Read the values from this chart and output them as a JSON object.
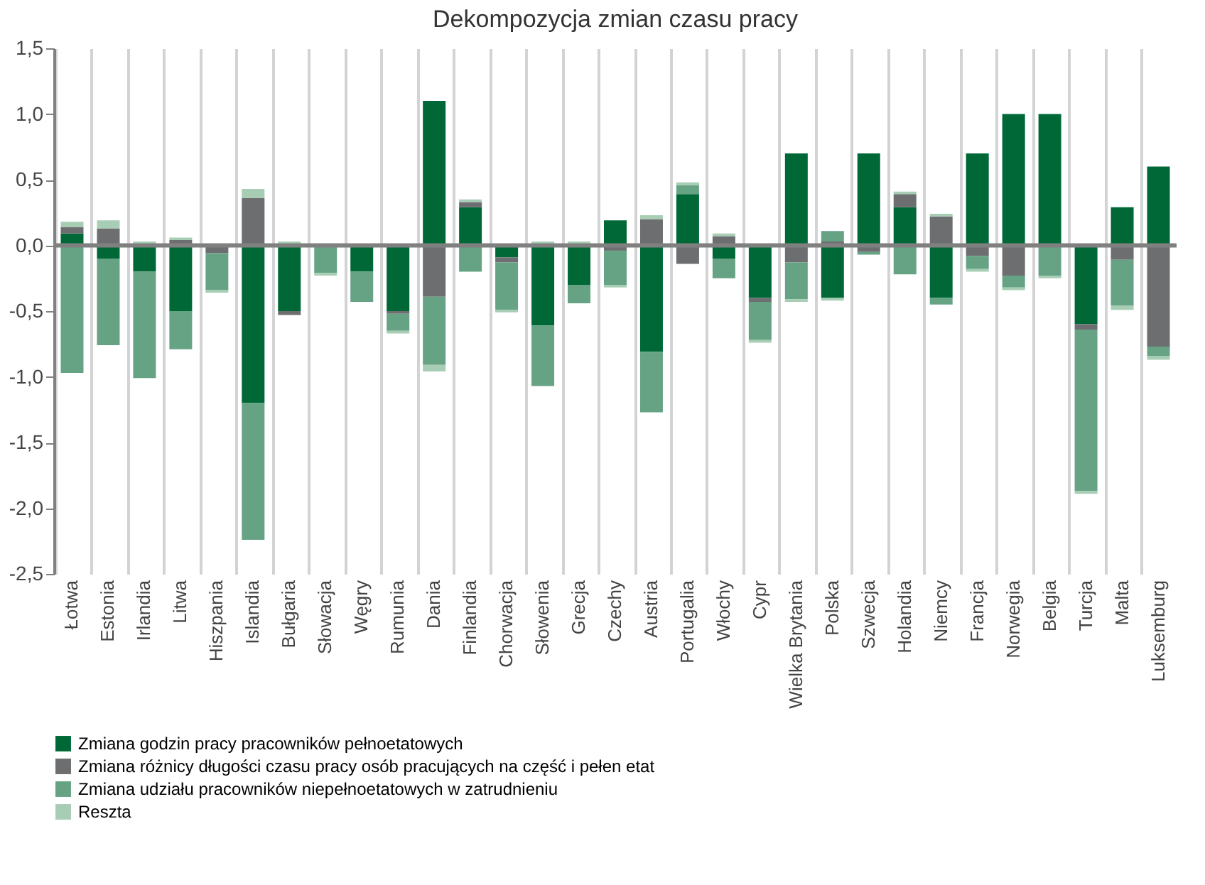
{
  "chart_data": {
    "type": "bar",
    "stacked": true,
    "title": "Dekompozycja zmian czasu pracy",
    "categories": [
      "Łotwa",
      "Estonia",
      "Irlandia",
      "Litwa",
      "Hiszpania",
      "Islandia",
      "Bułgaria",
      "Słowacja",
      "Węgry",
      "Rumunia",
      "Dania",
      "Finlandia",
      "Chorwacja",
      "Słowenia",
      "Grecja",
      "Czechy",
      "Austria",
      "Portugalia",
      "Włochy",
      "Cypr",
      "Wielka Brytania",
      "Polska",
      "Szwecja",
      "Holandia",
      "Niemcy",
      "Francja",
      "Norwegia",
      "Belgia",
      "Turcja",
      "Malta",
      "Luksemburg"
    ],
    "series": [
      {
        "name": "Zmiana godzin pracy pracowników pełnoetatowych",
        "color": "#006837",
        "values": [
          0.09,
          -0.1,
          -0.2,
          -0.5,
          0,
          -1.2,
          -0.5,
          0,
          -0.2,
          -0.5,
          1.1,
          0.29,
          -0.09,
          -0.61,
          -0.3,
          0.19,
          -0.81,
          0.39,
          -0.1,
          -0.4,
          0.7,
          -0.4,
          0.7,
          0.29,
          -0.4,
          0.7,
          1.0,
          1.0,
          -0.6,
          0.29,
          0.6
        ]
      },
      {
        "name": "Zmiana różnicy długości czasu pracy osób pracujących na część i pełen etat",
        "color": "#6d6e70",
        "values": [
          0.05,
          0.13,
          0,
          0.04,
          -0.06,
          0.36,
          -0.03,
          0,
          0,
          -0.02,
          -0.39,
          0.04,
          -0.04,
          0,
          0,
          -0.04,
          0.2,
          -0.14,
          0.07,
          -0.03,
          -0.13,
          0.03,
          -0.05,
          0.1,
          0.22,
          -0.08,
          -0.23,
          null,
          -0.04,
          -0.11,
          -0.77
        ]
      },
      {
        "name": "Zmiana udziału pracowników niepełnoetatowych w zatrudnieniu",
        "color": "#66a385",
        "values": [
          -0.97,
          -0.66,
          -0.81,
          -0.29,
          -0.28,
          -1.04,
          0,
          -0.21,
          -0.23,
          -0.13,
          -0.52,
          -0.2,
          -0.36,
          -0.46,
          -0.14,
          -0.26,
          -0.46,
          0.07,
          -0.15,
          -0.29,
          -0.28,
          0.08,
          -0.02,
          -0.22,
          -0.05,
          -0.1,
          -0.09,
          -0.23,
          -1.23,
          -0.35,
          -0.07
        ]
      },
      {
        "name": "Reszta",
        "color": "#a8cdb5",
        "values": [
          0.04,
          0.06,
          0.03,
          0.02,
          -0.02,
          0.07,
          0.03,
          -0.02,
          null,
          -0.02,
          -0.05,
          0.02,
          -0.02,
          0.03,
          0.03,
          -0.02,
          0.03,
          0.02,
          0.02,
          -0.02,
          -0.02,
          -0.02,
          null,
          0.02,
          0.02,
          -0.02,
          -0.02,
          -0.02,
          -0.02,
          -0.03,
          -0.03
        ]
      }
    ],
    "ylim": [
      -2.5,
      1.5
    ],
    "yticks": [
      {
        "value": 1.5,
        "label": "1,5"
      },
      {
        "value": 1.0,
        "label": "1,0"
      },
      {
        "value": 0.5,
        "label": "0,5"
      },
      {
        "value": 0.0,
        "label": "0,0"
      },
      {
        "value": -0.5,
        "label": "-0,5"
      },
      {
        "value": -1.0,
        "label": "-1,0"
      },
      {
        "value": -1.5,
        "label": "-1,5"
      },
      {
        "value": -2.0,
        "label": "-2,0"
      },
      {
        "value": -2.5,
        "label": "-2,5"
      }
    ],
    "ref_lines": [
      {
        "axis": "y",
        "value": 0,
        "color": "#808080"
      }
    ],
    "grid": "x",
    "legend": "bottom"
  }
}
